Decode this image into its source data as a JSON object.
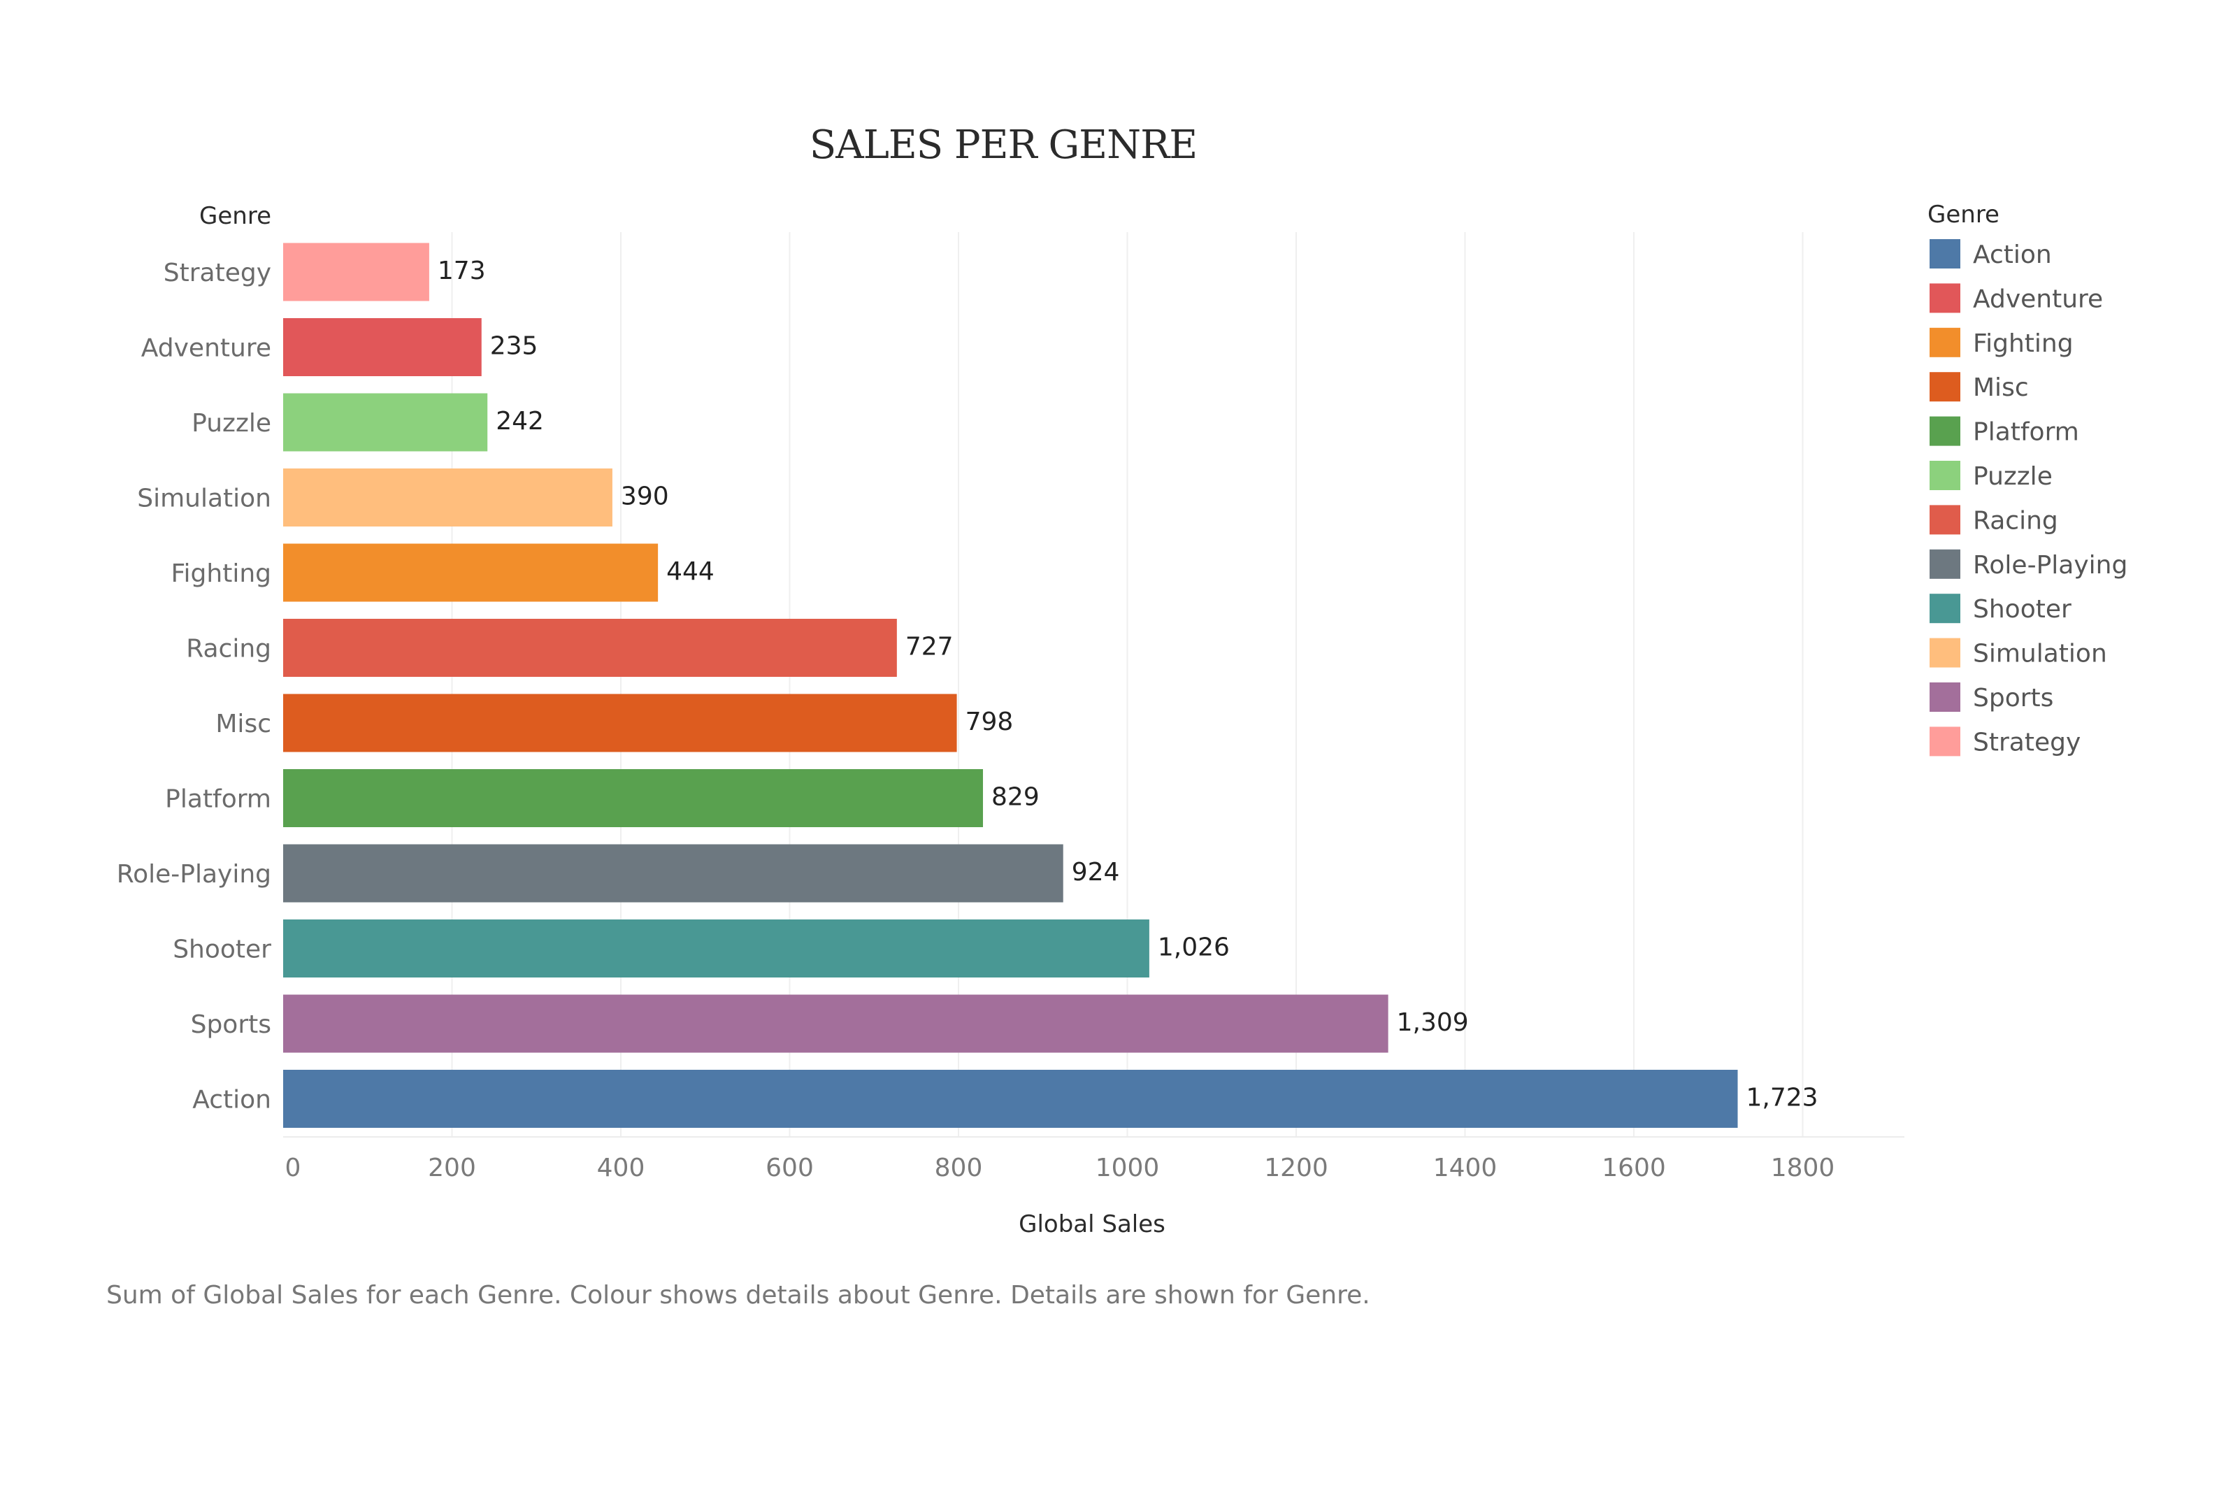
{
  "chart_data": {
    "type": "bar",
    "orientation": "horizontal",
    "title": "SALES PER GENRE",
    "row_header": "Genre",
    "xlabel": "Global Sales",
    "xlim": [
      0,
      1920
    ],
    "xticks": [
      0,
      200,
      400,
      600,
      800,
      1000,
      1200,
      1400,
      1600,
      1800
    ],
    "grid": "vertical",
    "categories": [
      "Strategy",
      "Adventure",
      "Puzzle",
      "Simulation",
      "Fighting",
      "Racing",
      "Misc",
      "Platform",
      "Role-Playing",
      "Shooter",
      "Sports",
      "Action"
    ],
    "values": [
      173,
      235,
      242,
      390,
      444,
      727,
      798,
      829,
      924,
      1026,
      1309,
      1723
    ],
    "value_labels": [
      "173",
      "235",
      "242",
      "390",
      "444",
      "727",
      "798",
      "829",
      "924",
      "1,026",
      "1,309",
      "1,723"
    ],
    "bar_colors": [
      "#ff9d9a",
      "#e15759",
      "#8cd17d",
      "#ffbe7d",
      "#f28e2b",
      "#e05c4b",
      "#dd5c1f",
      "#59a14f",
      "#6d7880",
      "#499894",
      "#a36f9b",
      "#4e79a7"
    ],
    "legend": {
      "title": "Genre",
      "placement": "right",
      "items": [
        {
          "label": "Action",
          "color": "#4e79a7"
        },
        {
          "label": "Adventure",
          "color": "#e15759"
        },
        {
          "label": "Fighting",
          "color": "#f28e2b"
        },
        {
          "label": "Misc",
          "color": "#dd5c1f"
        },
        {
          "label": "Platform",
          "color": "#59a14f"
        },
        {
          "label": "Puzzle",
          "color": "#8cd17d"
        },
        {
          "label": "Racing",
          "color": "#e05c4b"
        },
        {
          "label": "Role-Playing",
          "color": "#6d7880"
        },
        {
          "label": "Shooter",
          "color": "#499894"
        },
        {
          "label": "Simulation",
          "color": "#ffbe7d"
        },
        {
          "label": "Sports",
          "color": "#a36f9b"
        },
        {
          "label": "Strategy",
          "color": "#ff9d9a"
        }
      ]
    },
    "caption": "Sum of Global Sales for each Genre. Colour shows details about Genre. Details are shown for Genre."
  }
}
